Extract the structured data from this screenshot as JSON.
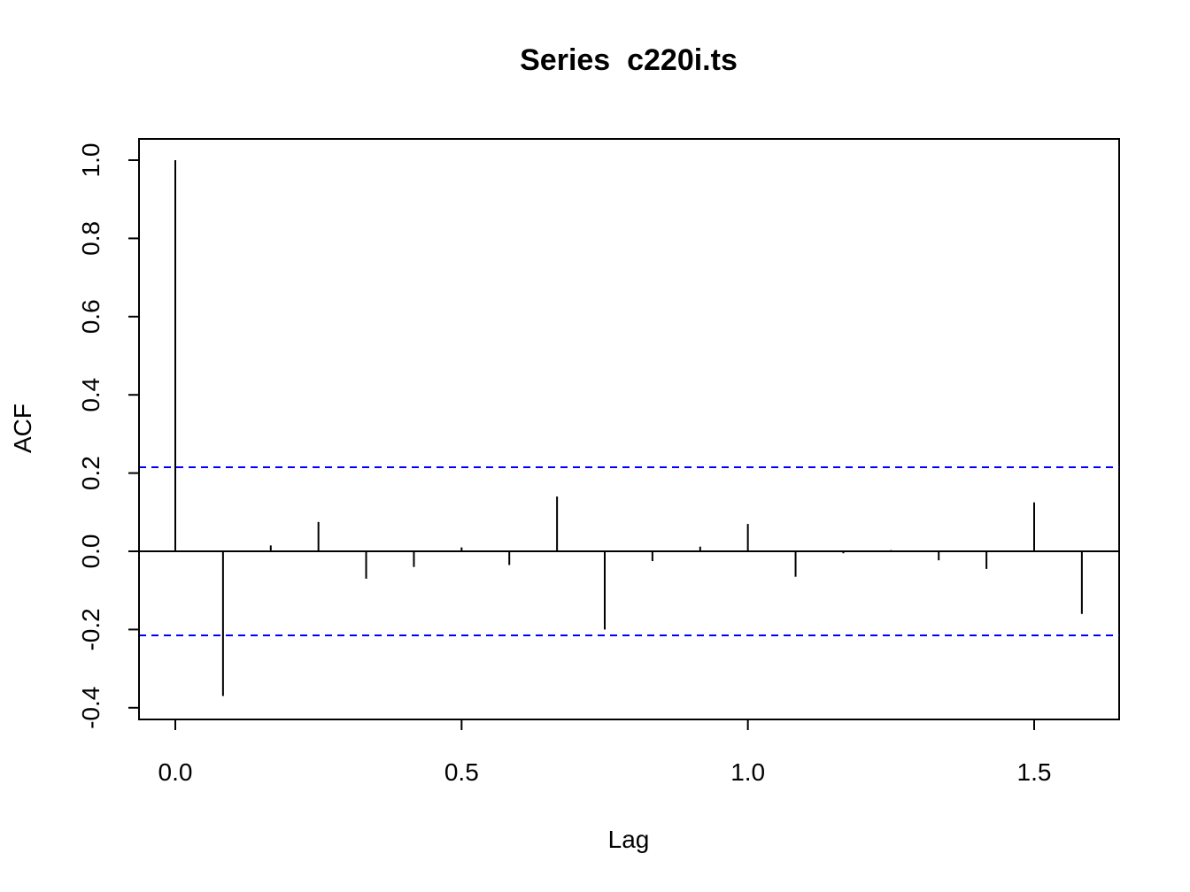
{
  "chart_data": {
    "type": "bar",
    "title": "Series  c220i.ts",
    "xlabel": "Lag",
    "ylabel": "ACF",
    "xlim": [
      -0.063,
      1.646
    ],
    "ylim": [
      -0.42,
      1.055
    ],
    "x_ticks": [
      0.0,
      0.5,
      1.0,
      1.5
    ],
    "x_tick_labels": [
      "0.0",
      "0.5",
      "1.0",
      "1.5"
    ],
    "y_ticks": [
      -0.4,
      -0.2,
      0.0,
      0.2,
      0.4,
      0.6,
      0.8,
      1.0
    ],
    "y_tick_labels": [
      "-0.4",
      "-0.2",
      "0.0",
      "0.2",
      "0.4",
      "0.6",
      "0.8",
      "1.0"
    ],
    "grid": false,
    "zero_line": true,
    "confidence_band": {
      "upper": 0.215,
      "lower": -0.215,
      "color": "#0000ff",
      "style": "dashed"
    },
    "series": [
      {
        "x": [
          0.0,
          0.0833,
          0.1667,
          0.25,
          0.3333,
          0.4167,
          0.5,
          0.5833,
          0.6667,
          0.75,
          0.8333,
          0.9167,
          1.0,
          1.0833,
          1.1667,
          1.25,
          1.3333,
          1.4167,
          1.5,
          1.5833
        ],
        "values": [
          1.0,
          -0.37,
          0.015,
          0.075,
          -0.07,
          -0.04,
          0.01,
          -0.035,
          0.14,
          -0.2,
          -0.025,
          0.012,
          0.07,
          -0.065,
          -0.005,
          0.003,
          -0.023,
          -0.045,
          0.125,
          -0.16
        ]
      }
    ],
    "colors": {
      "spike": "#000000",
      "band": "#0000ff",
      "frame": "#000000"
    }
  }
}
